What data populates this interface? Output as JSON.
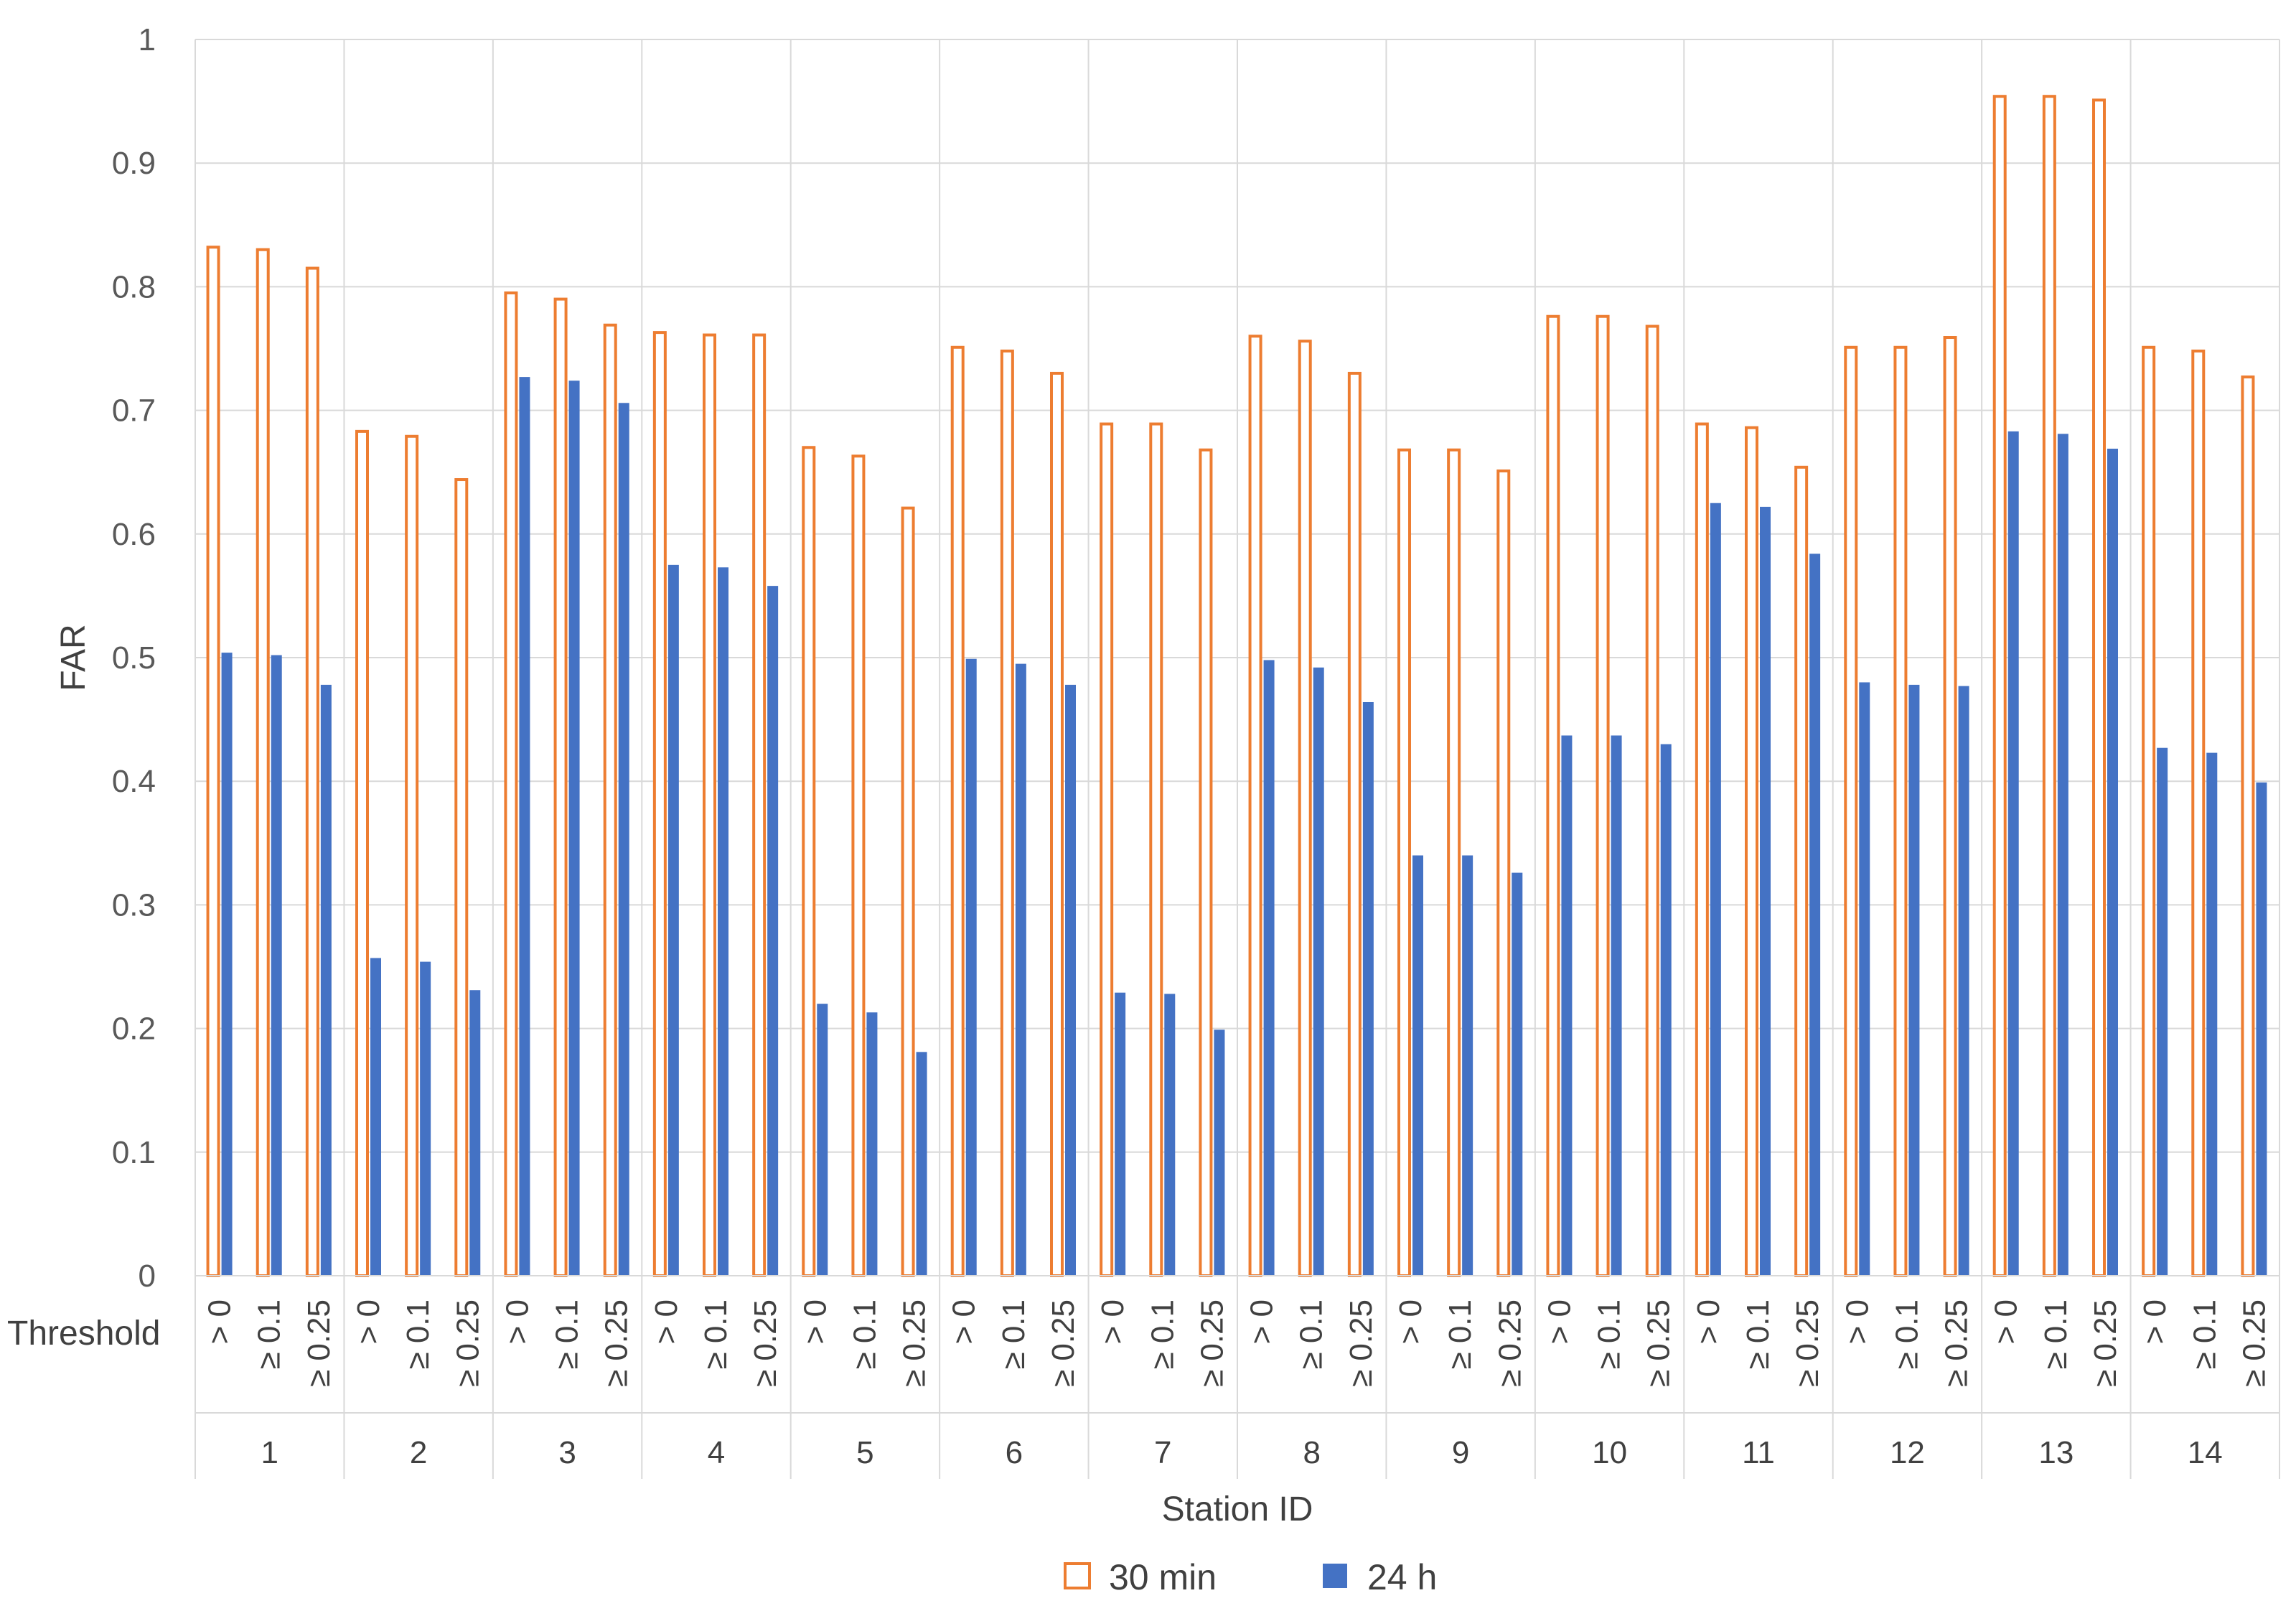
{
  "chart_data": {
    "type": "bar",
    "ylabel": "FAR",
    "xlabel": "Station ID",
    "row_label": "Threshold",
    "ylim": [
      0,
      1
    ],
    "yticks": [
      "0",
      "0.1",
      "0.2",
      "0.3",
      "0.4",
      "0.5",
      "0.6",
      "0.7",
      "0.8",
      "0.9",
      "1"
    ],
    "grid": true,
    "legend_position": "bottom",
    "thresholds": [
      "> 0",
      "≥ 0.1",
      "≥ 0.25"
    ],
    "stations": [
      "1",
      "2",
      "3",
      "4",
      "5",
      "6",
      "7",
      "8",
      "9",
      "10",
      "11",
      "12",
      "13",
      "14"
    ],
    "series": [
      {
        "name": "30 min",
        "color": "#ED7D31",
        "style": "outline",
        "values": [
          [
            0.832,
            0.83,
            0.815
          ],
          [
            0.683,
            0.679,
            0.644
          ],
          [
            0.795,
            0.79,
            0.769
          ],
          [
            0.763,
            0.761,
            0.761
          ],
          [
            0.67,
            0.663,
            0.621
          ],
          [
            0.751,
            0.748,
            0.73
          ],
          [
            0.689,
            0.689,
            0.668
          ],
          [
            0.76,
            0.756,
            0.73
          ],
          [
            0.668,
            0.668,
            0.651
          ],
          [
            0.776,
            0.776,
            0.768
          ],
          [
            0.689,
            0.686,
            0.654
          ],
          [
            0.751,
            0.751,
            0.759
          ],
          [
            0.954,
            0.954,
            0.951
          ],
          [
            0.751,
            0.748,
            0.727
          ]
        ]
      },
      {
        "name": "24 h",
        "color": "#4472C4",
        "style": "filled",
        "values": [
          [
            0.504,
            0.502,
            0.478
          ],
          [
            0.257,
            0.254,
            0.231
          ],
          [
            0.727,
            0.724,
            0.706
          ],
          [
            0.575,
            0.573,
            0.558
          ],
          [
            0.22,
            0.213,
            0.181
          ],
          [
            0.499,
            0.495,
            0.478
          ],
          [
            0.229,
            0.228,
            0.199
          ],
          [
            0.498,
            0.492,
            0.464
          ],
          [
            0.34,
            0.34,
            0.326
          ],
          [
            0.437,
            0.437,
            0.43
          ],
          [
            0.625,
            0.622,
            0.584
          ],
          [
            0.48,
            0.478,
            0.477
          ],
          [
            0.683,
            0.681,
            0.669
          ],
          [
            0.427,
            0.423,
            0.399
          ]
        ]
      }
    ]
  }
}
